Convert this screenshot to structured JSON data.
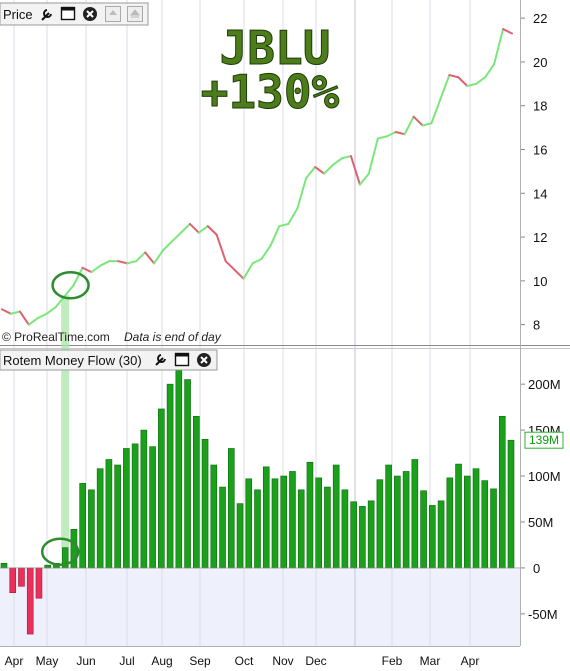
{
  "price_panel": {
    "header_label": "Price",
    "icons": [
      "wrench-icon",
      "window-icon",
      "close-icon",
      "scroll-up-icon",
      "scroll-top-icon"
    ],
    "watermark": "© ProRealTime.com",
    "note": "Data is end of day",
    "overlay_ticker": "JBLU",
    "overlay_gain": "+130%"
  },
  "indicator_panel": {
    "header_label": "Rotem Money Flow (30)",
    "icons": [
      "wrench-icon",
      "window-icon",
      "close-icon"
    ],
    "last_value_label": "139M"
  },
  "colors": {
    "up": "#7be67b",
    "down": "#e06070",
    "bar_up": "#1aa01a",
    "bar_up_edge": "#0b6b0b",
    "bar_down": "#e8305a",
    "circle": "#2e8b2e",
    "highlight": "#a8e6a8",
    "title_text": "#4c7d1a",
    "title_outline": "#1e3a08",
    "panel_bg": "#ffffff",
    "lower_bg": "#eef1fb",
    "grid": "#d9dde8",
    "badge_border": "#30b030",
    "badge_text": "#119911"
  },
  "chart_data": [
    {
      "type": "line",
      "title": "Price",
      "x_labels": [
        "Apr",
        "May",
        "Jun",
        "Jul",
        "Aug",
        "Sep",
        "Oct",
        "Nov",
        "Dec",
        "Feb",
        "Mar",
        "Apr"
      ],
      "y_ticks": [
        8,
        10,
        12,
        14,
        16,
        18,
        20,
        22
      ],
      "ylim": [
        7.3,
        22.6
      ],
      "values": [
        8.7,
        8.5,
        8.6,
        8.0,
        8.3,
        8.5,
        8.8,
        9.3,
        9.8,
        10.6,
        10.4,
        10.7,
        10.9,
        10.9,
        10.8,
        10.9,
        11.3,
        10.8,
        11.4,
        11.8,
        12.2,
        12.6,
        12.2,
        12.5,
        12.1,
        10.9,
        10.5,
        10.1,
        10.8,
        11.0,
        11.6,
        12.5,
        12.6,
        13.3,
        14.7,
        15.2,
        14.9,
        15.3,
        15.6,
        15.7,
        14.4,
        14.9,
        16.5,
        16.6,
        16.8,
        16.7,
        17.5,
        17.1,
        17.2,
        18.3,
        19.4,
        19.3,
        18.9,
        19.0,
        19.3,
        19.9,
        21.5,
        21.3
      ]
    },
    {
      "type": "bar",
      "title": "Rotem Money Flow (30)",
      "x_labels": [
        "Apr",
        "May",
        "Jun",
        "Jul",
        "Aug",
        "Sep",
        "Oct",
        "Nov",
        "Dec",
        "Feb",
        "Mar",
        "Apr"
      ],
      "y_tick_labels": [
        "200M",
        "150M",
        "100M",
        "50M",
        "0",
        "-50M"
      ],
      "y_ticks": [
        200,
        150,
        100,
        50,
        0,
        -50
      ],
      "ylim": [
        -85,
        235
      ],
      "unit": "M",
      "values": [
        5,
        -27,
        -20,
        -72,
        -33,
        3,
        5,
        22,
        42,
        92,
        85,
        108,
        118,
        112,
        130,
        135,
        150,
        132,
        173,
        200,
        215,
        205,
        165,
        140,
        112,
        88,
        130,
        70,
        97,
        85,
        110,
        97,
        100,
        105,
        85,
        115,
        98,
        88,
        112,
        85,
        72,
        67,
        73,
        96,
        112,
        100,
        105,
        118,
        84,
        68,
        73,
        98,
        113,
        100,
        108,
        95,
        86,
        165,
        139
      ]
    }
  ]
}
